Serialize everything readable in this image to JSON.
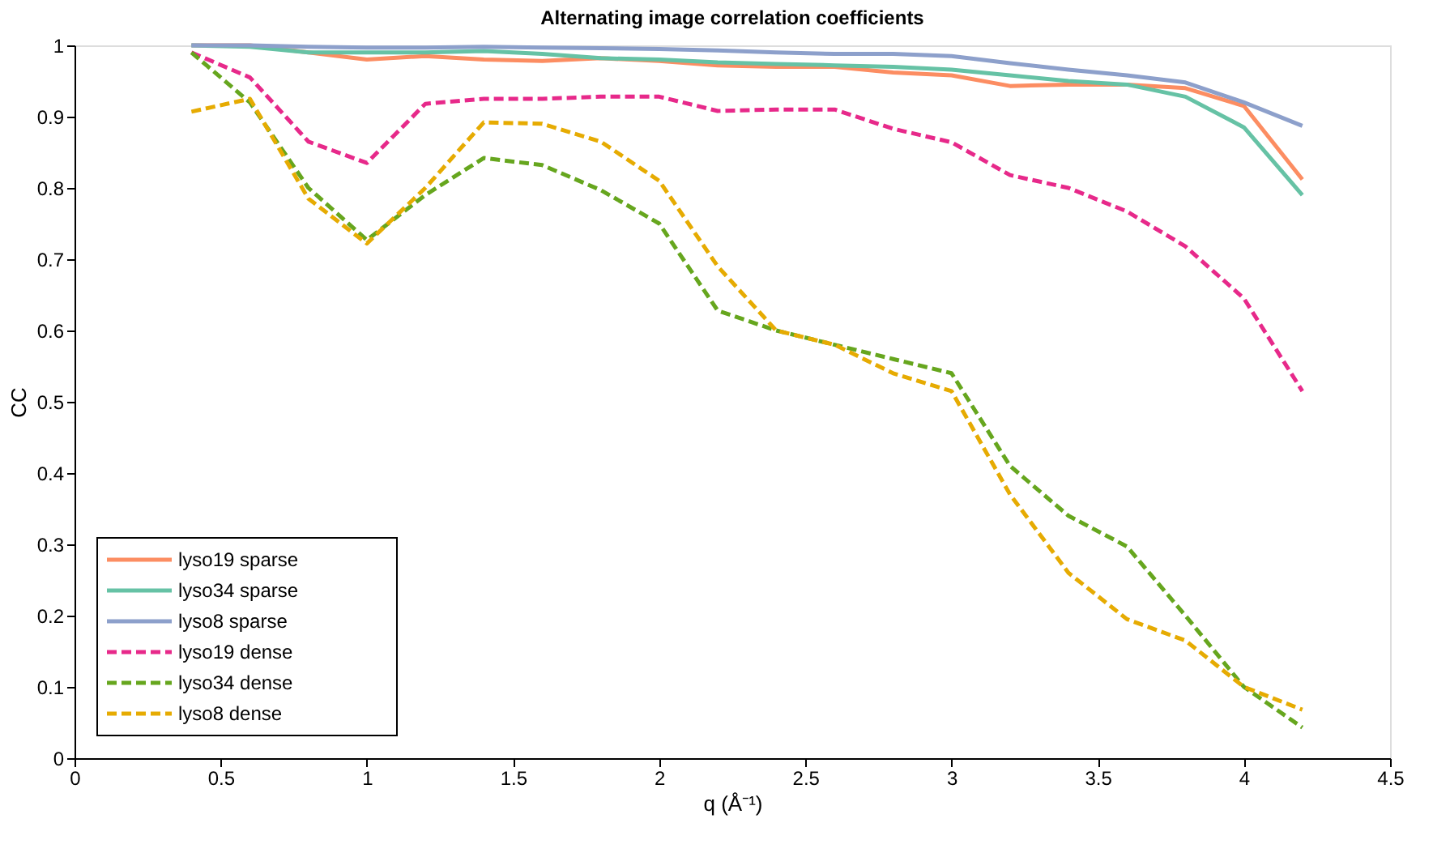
{
  "chart_data": {
    "type": "line",
    "title": "Alternating image correlation coefficients",
    "xlabel": "q (Å⁻¹)",
    "ylabel": "CC",
    "x": [
      0.4,
      0.6,
      0.8,
      1.0,
      1.2,
      1.4,
      1.6,
      1.8,
      2.0,
      2.2,
      2.4,
      2.6,
      2.8,
      3.0,
      3.2,
      3.4,
      3.6,
      3.8,
      4.0,
      4.2
    ],
    "xlim": [
      0,
      4.5
    ],
    "xticks": [
      0,
      0.5,
      1,
      1.5,
      2,
      2.5,
      3,
      3.5,
      4,
      4.5
    ],
    "ylim": [
      0,
      1
    ],
    "yticks": [
      0,
      0.1,
      0.2,
      0.3,
      0.4,
      0.5,
      0.6,
      0.7,
      0.8,
      0.9,
      1
    ],
    "grid": false,
    "legend": "bottom left",
    "marker": "none",
    "series": [
      {
        "name": "lyso19 sparse",
        "color": "#fc8d62",
        "line_style": "solid",
        "values": [
          1.0,
          1.0,
          0.99,
          0.98,
          0.985,
          0.98,
          0.978,
          0.982,
          0.978,
          0.972,
          0.97,
          0.97,
          0.962,
          0.958,
          0.943,
          0.945,
          0.945,
          0.94,
          0.915,
          0.812
        ]
      },
      {
        "name": "lyso34 sparse",
        "color": "#66c2a5",
        "line_style": "solid",
        "values": [
          1.0,
          0.998,
          0.99,
          0.99,
          0.99,
          0.992,
          0.988,
          0.982,
          0.98,
          0.976,
          0.974,
          0.972,
          0.97,
          0.966,
          0.958,
          0.95,
          0.945,
          0.928,
          0.885,
          0.79
        ]
      },
      {
        "name": "lyso8 sparse",
        "color": "#8da0cb",
        "line_style": "solid",
        "values": [
          1.0,
          1.0,
          0.998,
          0.997,
          0.997,
          0.998,
          0.997,
          0.996,
          0.995,
          0.993,
          0.99,
          0.988,
          0.988,
          0.985,
          0.975,
          0.966,
          0.958,
          0.948,
          0.92,
          0.887
        ]
      },
      {
        "name": "lyso19 dense",
        "color": "#e7298a",
        "line_style": "dashed",
        "values": [
          0.99,
          0.955,
          0.865,
          0.835,
          0.918,
          0.925,
          0.925,
          0.928,
          0.928,
          0.908,
          0.91,
          0.91,
          0.883,
          0.864,
          0.818,
          0.8,
          0.767,
          0.718,
          0.645,
          0.515
        ]
      },
      {
        "name": "lyso34 dense",
        "color": "#66a61e",
        "line_style": "dashed",
        "values": [
          0.99,
          0.92,
          0.8,
          0.727,
          0.79,
          0.842,
          0.832,
          0.797,
          0.75,
          0.628,
          0.6,
          0.58,
          0.56,
          0.54,
          0.41,
          0.34,
          0.297,
          0.2,
          0.1,
          0.043
        ]
      },
      {
        "name": "lyso8 dense",
        "color": "#e6ab02",
        "line_style": "dashed",
        "values": [
          0.907,
          0.925,
          0.785,
          0.722,
          0.8,
          0.892,
          0.89,
          0.865,
          0.81,
          0.69,
          0.6,
          0.58,
          0.54,
          0.515,
          0.37,
          0.26,
          0.195,
          0.165,
          0.1,
          0.068
        ]
      }
    ]
  }
}
